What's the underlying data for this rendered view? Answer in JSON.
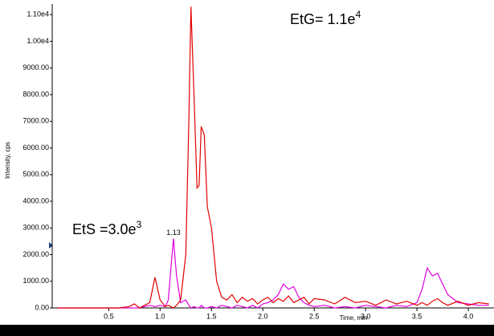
{
  "chart_data": {
    "type": "line",
    "x_label": "Time, min",
    "y_label": "Intensity, cps",
    "annotations": [
      {
        "text": "EtG= 1.1e",
        "sup": "4"
      },
      {
        "text": "EtS =3.0e",
        "sup": "3"
      }
    ],
    "peak_label": "1.13",
    "xlim": [
      -0.05,
      4.25
    ],
    "ylim": [
      0,
      11400
    ],
    "xticks": [
      0.5,
      {
        "value": 1,
        "label": "1.0"
      },
      1.5,
      {
        "value": 2,
        "label": "2.0"
      },
      2.5,
      {
        "value": 3,
        "label": "3.0"
      },
      3.5,
      {
        "value": 4,
        "label": "4.0"
      }
    ],
    "yticks": [
      {
        "value": 0,
        "label": "0.00"
      },
      {
        "value": 1000,
        "label": "1000.00"
      },
      {
        "value": 2000,
        "label": "2000.00"
      },
      {
        "value": 3000,
        "label": "3000.00"
      },
      {
        "value": 4000,
        "label": "4000.00"
      },
      {
        "value": 5000,
        "label": "5000.00"
      },
      {
        "value": 6000,
        "label": "6000.00"
      },
      {
        "value": 7000,
        "label": "7000.00"
      },
      {
        "value": 8000,
        "label": "8000.00"
      },
      {
        "value": 9000,
        "label": "9000.00"
      },
      {
        "value": 10000,
        "label": "1.00e4"
      },
      {
        "value": 11000,
        "label": "1.10e4"
      }
    ],
    "x": [
      0,
      0.1,
      0.2,
      0.3,
      0.4,
      0.5,
      0.6,
      0.7,
      0.75,
      0.8,
      0.85,
      0.9,
      0.95,
      1.0,
      1.05,
      1.08,
      1.13,
      1.16,
      1.2,
      1.25,
      1.28,
      1.3,
      1.33,
      1.36,
      1.38,
      1.4,
      1.43,
      1.46,
      1.5,
      1.55,
      1.6,
      1.65,
      1.7,
      1.75,
      1.8,
      1.85,
      1.9,
      1.95,
      2.0,
      2.05,
      2.1,
      2.15,
      2.2,
      2.25,
      2.3,
      2.35,
      2.4,
      2.45,
      2.5,
      2.6,
      2.7,
      2.8,
      2.9,
      3.0,
      3.1,
      3.2,
      3.3,
      3.4,
      3.5,
      3.55,
      3.6,
      3.65,
      3.7,
      3.75,
      3.8,
      3.9,
      4.0,
      4.1,
      4.2
    ],
    "series": [
      {
        "color": "#e00000",
        "values": [
          0,
          0,
          0,
          0,
          0,
          0,
          0,
          50,
          150,
          0,
          100,
          200,
          1150,
          300,
          50,
          100,
          0,
          100,
          300,
          2000,
          7000,
          11300,
          8000,
          4500,
          4600,
          6800,
          6500,
          3800,
          3000,
          1000,
          400,
          300,
          500,
          200,
          400,
          250,
          350,
          150,
          300,
          400,
          200,
          350,
          250,
          450,
          200,
          300,
          400,
          150,
          350,
          300,
          150,
          400,
          200,
          250,
          100,
          300,
          150,
          250,
          100,
          200,
          100,
          250,
          350,
          200,
          100,
          250,
          100,
          200,
          150
        ]
      },
      {
        "color": "#e000e0",
        "values": [
          0,
          0,
          0,
          0,
          0,
          0,
          0,
          0,
          0,
          0,
          50,
          100,
          50,
          100,
          50,
          300,
          2600,
          1200,
          200,
          300,
          100,
          0,
          50,
          0,
          0,
          100,
          0,
          0,
          50,
          0,
          100,
          50,
          0,
          100,
          50,
          0,
          100,
          0,
          150,
          200,
          300,
          500,
          900,
          700,
          800,
          400,
          200,
          100,
          50,
          100,
          0,
          50,
          0,
          100,
          50,
          0,
          100,
          50,
          200,
          700,
          1500,
          1200,
          1300,
          900,
          500,
          200,
          150,
          100,
          100
        ]
      }
    ]
  }
}
